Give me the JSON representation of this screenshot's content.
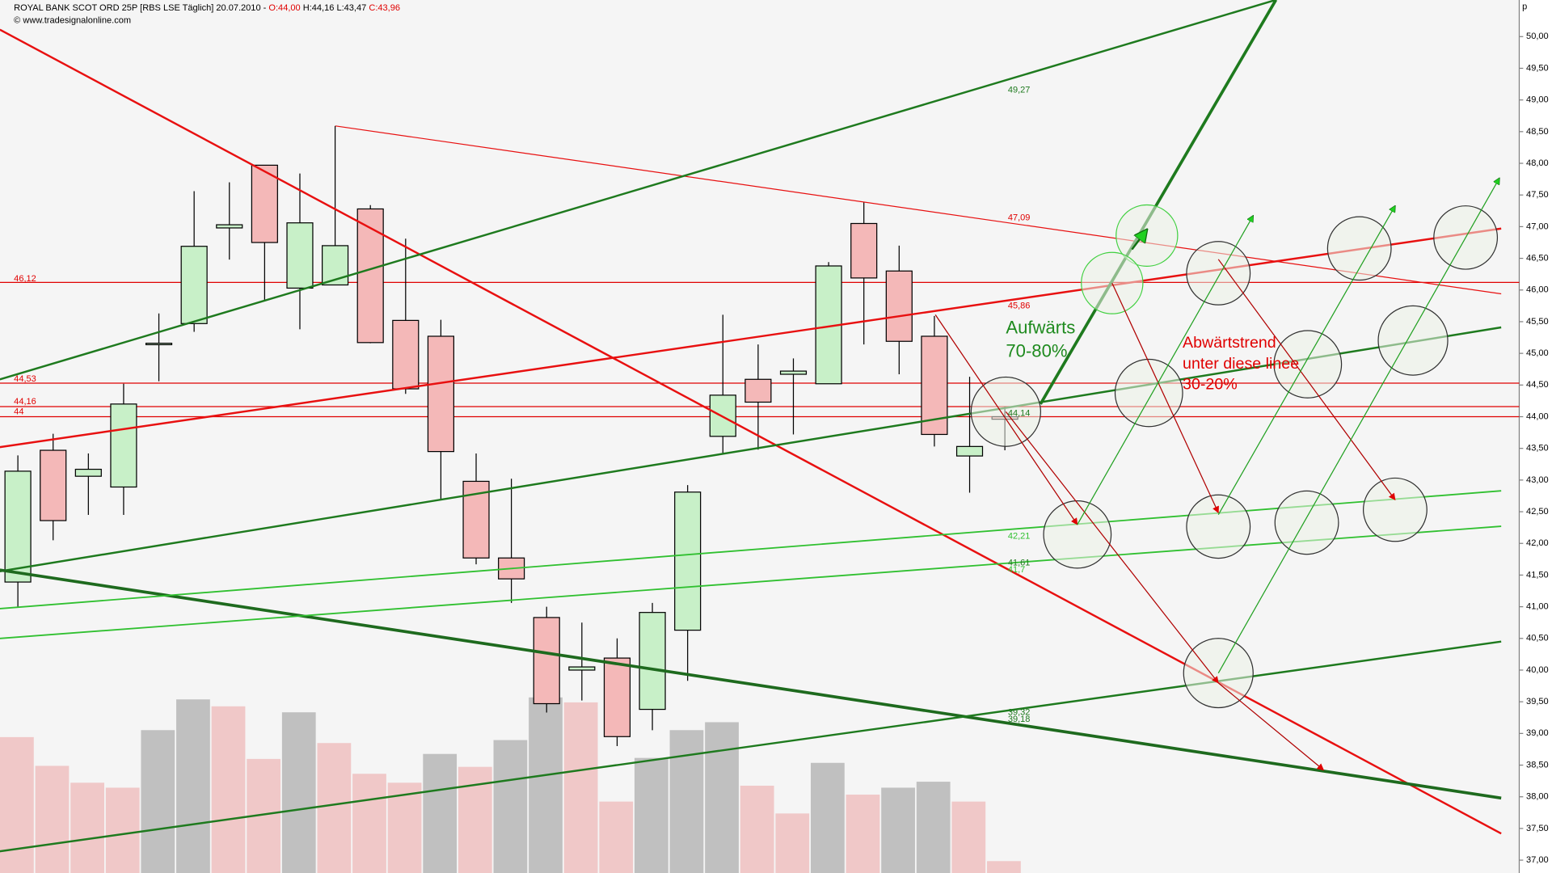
{
  "chart_data": {
    "type": "candlestick",
    "title": "ROYAL BANK SCOT ORD 25P [RBS LSE  Täglich] 20.07.2010 -",
    "ohlc_labels": [
      "O:44,00",
      "H:44,16",
      "L:43,47",
      "C:43,96"
    ],
    "source": "© www.tradesignalonline.com",
    "unit": "p",
    "ylim": [
      36.797,
      50.578
    ],
    "yticks": [
      {
        "value": 37,
        "label": "37,00"
      },
      {
        "value": 37.5,
        "label": "37,50"
      },
      {
        "value": 38,
        "label": "38,00"
      },
      {
        "value": 38.5,
        "label": "38,50"
      },
      {
        "value": 39,
        "label": "39,00"
      },
      {
        "value": 39.5,
        "label": "39,50"
      },
      {
        "value": 40,
        "label": "40,00"
      },
      {
        "value": 40.5,
        "label": "40,50"
      },
      {
        "value": 41,
        "label": "41,00"
      },
      {
        "value": 41.5,
        "label": "41,50"
      },
      {
        "value": 42,
        "label": "42,00"
      },
      {
        "value": 42.5,
        "label": "42,50"
      },
      {
        "value": 43,
        "label": "43,00"
      },
      {
        "value": 43.5,
        "label": "43,50"
      },
      {
        "value": 44,
        "label": "44,00"
      },
      {
        "value": 44.5,
        "label": "44,50"
      },
      {
        "value": 45,
        "label": "45,00"
      },
      {
        "value": 45.5,
        "label": "45,50"
      },
      {
        "value": 46,
        "label": "46,00"
      },
      {
        "value": 46.5,
        "label": "46,50"
      },
      {
        "value": 47,
        "label": "47,00"
      },
      {
        "value": 47.5,
        "label": "47,50"
      },
      {
        "value": 48,
        "label": "48,00"
      },
      {
        "value": 48.5,
        "label": "48,50"
      },
      {
        "value": 49,
        "label": "49,00"
      },
      {
        "value": 49.5,
        "label": "49,50"
      },
      {
        "value": 50,
        "label": "50,00"
      }
    ],
    "up_color": "#c8f0c8",
    "down_color": "#f4b8b8",
    "open": [
      41.39,
      43.47,
      43.06,
      42.89,
      45.14,
      45.47,
      46.98,
      47.97,
      46.03,
      46.08,
      47.28,
      45.52,
      45.27,
      42.98,
      41.77,
      40.83,
      40.0,
      40.19,
      39.38,
      40.63,
      43.69,
      44.59,
      44.67,
      44.52,
      47.05,
      46.3,
      45.27,
      43.38,
      44.0
    ],
    "high": [
      43.39,
      43.73,
      43.42,
      44.52,
      45.63,
      47.56,
      47.7,
      47.97,
      47.84,
      48.59,
      47.34,
      46.81,
      45.53,
      43.42,
      43.02,
      41.0,
      40.75,
      40.5,
      41.06,
      42.92,
      45.61,
      45.14,
      44.92,
      46.44,
      47.39,
      46.7,
      45.59,
      44.63,
      44.16
    ],
    "low": [
      41.0,
      42.05,
      42.45,
      42.45,
      44.56,
      45.34,
      46.48,
      45.83,
      45.38,
      46.08,
      45.16,
      44.36,
      42.69,
      41.67,
      41.06,
      39.33,
      39.52,
      38.8,
      39.05,
      39.83,
      43.42,
      43.48,
      43.72,
      44.52,
      45.14,
      44.67,
      43.53,
      42.8,
      43.47
    ],
    "close": [
      43.14,
      42.36,
      43.17,
      44.2,
      45.16,
      46.69,
      47.03,
      46.75,
      47.06,
      46.7,
      45.17,
      44.44,
      43.45,
      41.77,
      41.44,
      39.47,
      40.05,
      38.95,
      40.91,
      42.81,
      44.34,
      44.23,
      44.72,
      46.38,
      46.19,
      45.19,
      43.72,
      43.53,
      43.96
    ],
    "volume": {
      "values": [
        137,
        108,
        91,
        86,
        144,
        175,
        168,
        115,
        162,
        131,
        100,
        91,
        120,
        107,
        134,
        177,
        172,
        72,
        116,
        144,
        152,
        88,
        60,
        111,
        79,
        86,
        92,
        72,
        12
      ],
      "colors": [
        "#f0c8c8",
        "#f0c8c8",
        "#f0c8c8",
        "#f0c8c8",
        "#c0c0c0",
        "#c0c0c0",
        "#f0c8c8",
        "#f0c8c8",
        "#c0c0c0",
        "#f0c8c8",
        "#f0c8c8",
        "#f0c8c8",
        "#c0c0c0",
        "#f0c8c8",
        "#c0c0c0",
        "#c0c0c0",
        "#f0c8c8",
        "#f0c8c8",
        "#c0c0c0",
        "#c0c0c0",
        "#c0c0c0",
        "#f0c8c8",
        "#f0c8c8",
        "#c0c0c0",
        "#f0c8c8",
        "#c0c0c0",
        "#c0c0c0",
        "#f0c8c8",
        "#f0c8c8"
      ],
      "ylim": [
        0,
        880
      ]
    },
    "levels": {
      "values": [
        46.12,
        44.53,
        44.16,
        44
      ],
      "color": "#e00000"
    },
    "lines": [
      {
        "x": [
          -0.51,
          42.08
        ],
        "y": [
          50.11,
          37.42
        ],
        "color": "#e81010",
        "width": 2
      },
      {
        "x": [
          9.01,
          42.08
        ],
        "y": [
          48.59,
          45.94
        ],
        "color": "#e81010",
        "width": 1
      },
      {
        "x": [
          -0.51,
          42.08
        ],
        "y": [
          43.52,
          46.97
        ],
        "color": "#e81010",
        "width": 2
      },
      {
        "x": [
          -0.51,
          35.69
        ],
        "y": [
          44.59,
          50.58
        ],
        "color": "#1e7a1e",
        "width": 2
      },
      {
        "x": [
          29.01,
          35.69
        ],
        "y": [
          44.2,
          50.58
        ],
        "color": "#1e7a1e",
        "width": 3
      },
      {
        "x": [
          -0.51,
          42.08
        ],
        "y": [
          41.56,
          45.41
        ],
        "color": "#1e7a1e",
        "width": 2
      },
      {
        "x": [
          -0.51,
          42.08
        ],
        "y": [
          41.58,
          37.98
        ],
        "color": "#1e6a1e",
        "width": 3
      },
      {
        "x": [
          -0.51,
          42.08
        ],
        "y": [
          37.14,
          40.45
        ],
        "color": "#1e7a1e",
        "width": 2
      },
      {
        "x": [
          -0.51,
          42.08
        ],
        "y": [
          40.97,
          42.83
        ],
        "color": "#30c030",
        "width": 1.5
      },
      {
        "x": [
          -0.51,
          42.08
        ],
        "y": [
          40.5,
          42.27
        ],
        "color": "#30c030",
        "width": 1.5
      }
    ],
    "line_labels": [
      {
        "text": "49,27",
        "color": "#1e7a1e"
      },
      {
        "text": "47,09",
        "color": "#e00000"
      },
      {
        "text": "45,86",
        "color": "#e00000"
      },
      {
        "text": "46,12",
        "color": "#e00000"
      },
      {
        "text": "44,53",
        "color": "#e00000"
      },
      {
        "text": "44,16",
        "color": "#e00000"
      },
      {
        "text": "44",
        "color": "#e00000"
      },
      {
        "text": "44,14",
        "color": "#1e7a1e"
      },
      {
        "text": "42,21",
        "color": "#30c030"
      },
      {
        "text": "41,61",
        "color": "#1e7a1e"
      },
      {
        "text": "41,7",
        "color": "#30c030"
      },
      {
        "text": "39,32",
        "color": "#1e7a1e"
      },
      {
        "text": "39,18",
        "color": "#1e7a1e"
      }
    ],
    "notes": [
      {
        "lines": [
          "Aufwärts",
          "70-80%"
        ],
        "color": "#1e8a1e"
      },
      {
        "lines": [
          "Abwärtstrend",
          "unter diese linee",
          "30-20%"
        ],
        "color": "#e00000"
      }
    ]
  }
}
